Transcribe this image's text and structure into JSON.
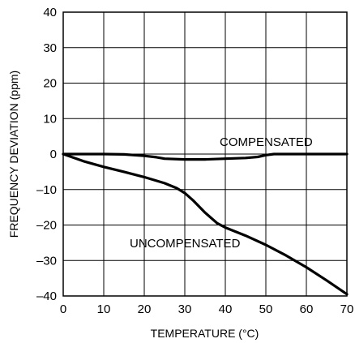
{
  "chart_data": {
    "type": "line",
    "xlabel": "TEMPERATURE (°C)",
    "ylabel": "FREQUENCY DEVIATION (ppm)",
    "xlim": [
      0,
      70
    ],
    "ylim": [
      -40,
      40
    ],
    "xticks": [
      0,
      10,
      20,
      30,
      40,
      50,
      60,
      70
    ],
    "yticks": [
      40,
      30,
      20,
      10,
      0,
      -10,
      -20,
      -30,
      -40
    ],
    "grid": true,
    "annotations": [
      "COMPENSATED",
      "UNCOMPENSATED"
    ],
    "series": [
      {
        "x": [
          0,
          5,
          10,
          15,
          20,
          23,
          25,
          30,
          35,
          40,
          45,
          48,
          50,
          52,
          55,
          60,
          65,
          70
        ],
        "y": [
          0,
          0,
          0,
          -0.1,
          -0.5,
          -0.9,
          -1.3,
          -1.5,
          -1.5,
          -1.3,
          -1.1,
          -0.8,
          -0.3,
          0,
          0,
          0,
          0,
          0
        ]
      },
      {
        "x": [
          0,
          5,
          10,
          15,
          20,
          25,
          28,
          30,
          32,
          35,
          38,
          40,
          45,
          50,
          55,
          60,
          65,
          70
        ],
        "y": [
          0,
          -2,
          -3.6,
          -5,
          -6.5,
          -8.2,
          -9.6,
          -11,
          -13,
          -16.5,
          -19.5,
          -20.7,
          -23,
          -25.6,
          -28.6,
          -31.9,
          -35.6,
          -39.5
        ]
      }
    ]
  }
}
